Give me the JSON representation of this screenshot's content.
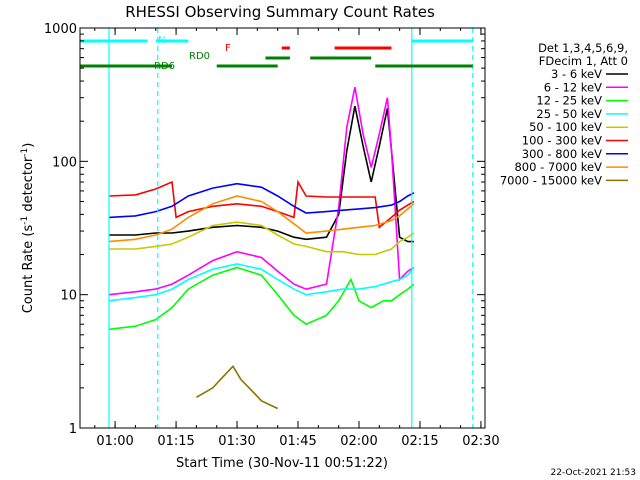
{
  "chart_data": {
    "type": "line",
    "title": "RHESSI Observing Summary Count Rates",
    "xlabel": "Start Time (30-Nov-11 00:51:22)",
    "ylabel_prefix": "Count Rate (s",
    "ylabel_sup1": "-1",
    "ylabel_mid": " detector",
    "ylabel_sup2": "-1",
    "ylabel_suffix": ")",
    "y_scale": "log",
    "ylim": [
      1,
      1000
    ],
    "xlim": [
      "00:51:22",
      "02:31:00"
    ],
    "x_ticks": [
      "01:00",
      "01:15",
      "01:30",
      "01:45",
      "02:00",
      "02:15",
      "02:30"
    ],
    "y_ticks": [
      {
        "value": 1,
        "label": "1"
      },
      {
        "value": 10,
        "label": "10"
      },
      {
        "value": 100,
        "label": "100"
      },
      {
        "value": 1000,
        "label": "1000"
      }
    ],
    "legend_header": [
      "Det 1,3,4,5,6,9,",
      "FDecim 1, Att 0"
    ],
    "series": [
      {
        "name": "3 - 6 keV",
        "color": "#000000",
        "points": [
          [
            "00:58:30",
            28
          ],
          [
            "01:05",
            28
          ],
          [
            "01:10",
            29
          ],
          [
            "01:14",
            29
          ],
          [
            "01:18",
            30
          ],
          [
            "01:24",
            32
          ],
          [
            "01:30",
            33
          ],
          [
            "01:36",
            32
          ],
          [
            "01:40",
            30
          ],
          [
            "01:44",
            27
          ],
          [
            "01:47",
            26
          ],
          [
            "01:52",
            27
          ],
          [
            "01:55",
            40
          ],
          [
            "01:57",
            120
          ],
          [
            "01:59",
            260
          ],
          [
            "02:01",
            130
          ],
          [
            "02:03",
            70
          ],
          [
            "02:05",
            130
          ],
          [
            "02:07",
            250
          ],
          [
            "02:08",
            120
          ],
          [
            "02:10",
            27
          ],
          [
            "02:12",
            25
          ],
          [
            "02:13:30",
            25
          ]
        ]
      },
      {
        "name": "6 - 12 keV",
        "color": "#ff00ff",
        "points": [
          [
            "00:58:30",
            10
          ],
          [
            "01:05",
            10.5
          ],
          [
            "01:10",
            11
          ],
          [
            "01:14",
            12
          ],
          [
            "01:18",
            14
          ],
          [
            "01:24",
            18
          ],
          [
            "01:30",
            21
          ],
          [
            "01:36",
            19
          ],
          [
            "01:40",
            15
          ],
          [
            "01:44",
            12
          ],
          [
            "01:47",
            11
          ],
          [
            "01:52",
            12
          ],
          [
            "01:55",
            45
          ],
          [
            "01:57",
            180
          ],
          [
            "01:59",
            360
          ],
          [
            "02:01",
            160
          ],
          [
            "02:03",
            90
          ],
          [
            "02:05",
            160
          ],
          [
            "02:07",
            300
          ],
          [
            "02:08",
            120
          ],
          [
            "02:10",
            13
          ],
          [
            "02:12",
            15
          ],
          [
            "02:13:30",
            16
          ]
        ]
      },
      {
        "name": "12 - 25 keV",
        "color": "#00ff00",
        "points": [
          [
            "00:58:30",
            5.5
          ],
          [
            "01:05",
            5.8
          ],
          [
            "01:10",
            6.5
          ],
          [
            "01:14",
            8
          ],
          [
            "01:18",
            11
          ],
          [
            "01:24",
            14
          ],
          [
            "01:30",
            16
          ],
          [
            "01:36",
            14
          ],
          [
            "01:40",
            10
          ],
          [
            "01:44",
            7
          ],
          [
            "01:47",
            6
          ],
          [
            "01:52",
            7
          ],
          [
            "01:55",
            9
          ],
          [
            "01:58",
            13
          ],
          [
            "02:00",
            9
          ],
          [
            "02:03",
            8
          ],
          [
            "02:06",
            9
          ],
          [
            "02:08",
            9
          ],
          [
            "02:10",
            10
          ],
          [
            "02:12",
            11
          ],
          [
            "02:13:30",
            12
          ]
        ]
      },
      {
        "name": "25 - 50 keV",
        "color": "#00ffff",
        "points": [
          [
            "00:58:30",
            9
          ],
          [
            "01:05",
            9.5
          ],
          [
            "01:10",
            10
          ],
          [
            "01:14",
            11
          ],
          [
            "01:18",
            13
          ],
          [
            "01:24",
            15.5
          ],
          [
            "01:30",
            17
          ],
          [
            "01:36",
            15.5
          ],
          [
            "01:40",
            13
          ],
          [
            "01:44",
            11
          ],
          [
            "01:47",
            10
          ],
          [
            "01:52",
            10.5
          ],
          [
            "01:56",
            11
          ],
          [
            "02:00",
            11
          ],
          [
            "02:04",
            11.5
          ],
          [
            "02:08",
            12.5
          ],
          [
            "02:10",
            13
          ],
          [
            "02:12",
            14
          ],
          [
            "02:13:30",
            16
          ]
        ]
      },
      {
        "name": "50 - 100 keV",
        "color": "#c8c800",
        "points": [
          [
            "00:58:30",
            22
          ],
          [
            "01:05",
            22
          ],
          [
            "01:10",
            23
          ],
          [
            "01:14",
            24
          ],
          [
            "01:18",
            27
          ],
          [
            "01:24",
            33
          ],
          [
            "01:30",
            35
          ],
          [
            "01:36",
            33
          ],
          [
            "01:40",
            28
          ],
          [
            "01:44",
            24
          ],
          [
            "01:47",
            23
          ],
          [
            "01:52",
            21
          ],
          [
            "01:56",
            21
          ],
          [
            "02:00",
            20
          ],
          [
            "02:04",
            20
          ],
          [
            "02:08",
            22
          ],
          [
            "02:10",
            25
          ],
          [
            "02:12",
            27
          ],
          [
            "02:13:30",
            29
          ]
        ]
      },
      {
        "name": "100 - 300 keV",
        "color": "#ff0000",
        "points": [
          [
            "00:58:30",
            55
          ],
          [
            "01:05",
            56
          ],
          [
            "01:10",
            62
          ],
          [
            "01:14",
            70
          ],
          [
            "01:15",
            38
          ],
          [
            "01:18",
            42
          ],
          [
            "01:24",
            46
          ],
          [
            "01:30",
            48
          ],
          [
            "01:36",
            46
          ],
          [
            "01:40",
            42
          ],
          [
            "01:44",
            38
          ],
          [
            "01:45",
            70
          ],
          [
            "01:47",
            55
          ],
          [
            "01:52",
            54
          ],
          [
            "01:56",
            54
          ],
          [
            "02:00",
            54
          ],
          [
            "02:04",
            54
          ],
          [
            "02:05",
            32
          ],
          [
            "02:08",
            38
          ],
          [
            "02:10",
            43
          ],
          [
            "02:12",
            47
          ],
          [
            "02:13:30",
            50
          ]
        ]
      },
      {
        "name": "300 - 800 keV",
        "color": "#0000ff",
        "points": [
          [
            "00:58:30",
            38
          ],
          [
            "01:05",
            39
          ],
          [
            "01:10",
            42
          ],
          [
            "01:14",
            46
          ],
          [
            "01:18",
            55
          ],
          [
            "01:24",
            63
          ],
          [
            "01:30",
            68
          ],
          [
            "01:36",
            64
          ],
          [
            "01:40",
            55
          ],
          [
            "01:44",
            46
          ],
          [
            "01:47",
            41
          ],
          [
            "01:52",
            42
          ],
          [
            "01:56",
            43
          ],
          [
            "02:00",
            44
          ],
          [
            "02:04",
            45
          ],
          [
            "02:08",
            47
          ],
          [
            "02:10",
            50
          ],
          [
            "02:12",
            55
          ],
          [
            "02:13:30",
            58
          ]
        ]
      },
      {
        "name": "800 - 7000 keV",
        "color": "#ff8c00",
        "points": [
          [
            "00:58:30",
            25
          ],
          [
            "01:05",
            26
          ],
          [
            "01:10",
            28
          ],
          [
            "01:14",
            31
          ],
          [
            "01:18",
            38
          ],
          [
            "01:24",
            48
          ],
          [
            "01:30",
            55
          ],
          [
            "01:36",
            50
          ],
          [
            "01:40",
            42
          ],
          [
            "01:44",
            34
          ],
          [
            "01:47",
            29
          ],
          [
            "01:52",
            30
          ],
          [
            "01:56",
            31
          ],
          [
            "02:00",
            32
          ],
          [
            "02:04",
            33
          ],
          [
            "02:08",
            36
          ],
          [
            "02:10",
            39
          ],
          [
            "02:12",
            44
          ],
          [
            "02:13:30",
            48
          ]
        ]
      },
      {
        "name": "7000 - 15000 keV",
        "color": "#8b7500",
        "points": [
          [
            "01:20",
            1.7
          ],
          [
            "01:24",
            2.0
          ],
          [
            "01:27",
            2.5
          ],
          [
            "01:29",
            2.9
          ],
          [
            "01:31",
            2.3
          ],
          [
            "01:33",
            2.0
          ],
          [
            "01:36",
            1.6
          ],
          [
            "01:40",
            1.4
          ]
        ]
      }
    ],
    "flags": {
      "N": {
        "label": "N",
        "color": "#00ffff",
        "segments": [
          [
            "00:51:22",
            "01:08"
          ],
          [
            "01:10",
            "01:18"
          ],
          [
            "02:13",
            "02:28"
          ]
        ]
      },
      "F": {
        "label": "F",
        "color": "#ff0000",
        "segments": [
          [
            "01:41",
            "01:43"
          ],
          [
            "01:54",
            "02:08"
          ]
        ]
      },
      "RD0": {
        "label": "RD0",
        "color": "#008000",
        "segments": [
          [
            "01:37",
            "01:43"
          ],
          [
            "01:48",
            "02:03"
          ]
        ]
      },
      "RD6": {
        "label": "RD6",
        "color": "#008000",
        "segments": [
          [
            "00:51:22",
            "01:14"
          ],
          [
            "01:25",
            "01:40"
          ],
          [
            "02:04",
            "02:28"
          ]
        ]
      }
    },
    "vertical_markers": [
      {
        "time": "00:58:30",
        "style": "solid",
        "color": "#00ffff"
      },
      {
        "time": "01:10:30",
        "style": "dashed",
        "color": "#00ffff"
      },
      {
        "time": "02:13:00",
        "style": "solid",
        "color": "#00ffff"
      },
      {
        "time": "02:28:00",
        "style": "dashed",
        "color": "#00ffff"
      }
    ],
    "timestamp": "22-Oct-2021 21:53"
  }
}
